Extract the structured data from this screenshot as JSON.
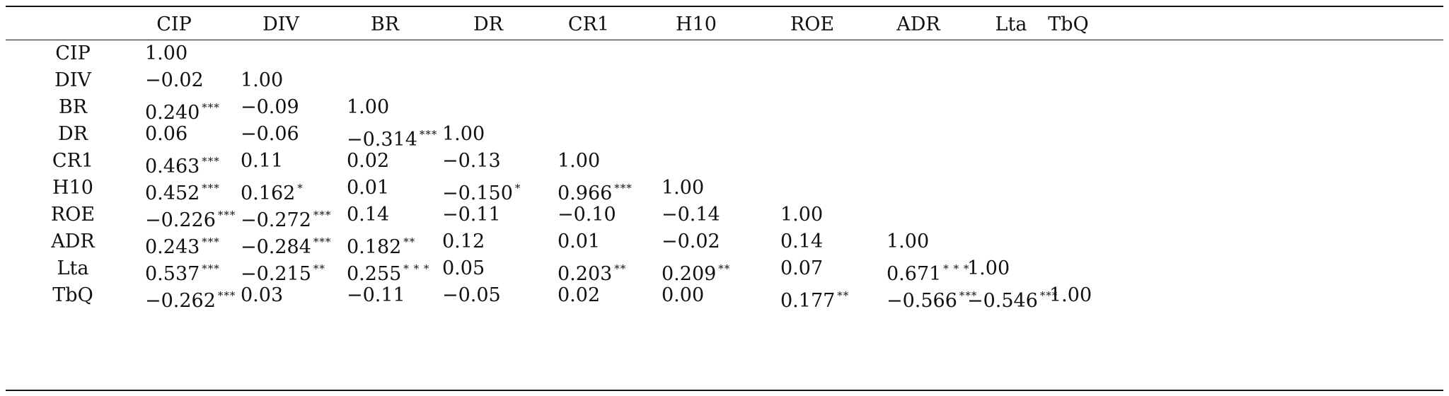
{
  "table": {
    "columns": [
      "CIP",
      "DIV",
      "BR",
      "DR",
      "CR1",
      "H10",
      "ROE",
      "ADR",
      "Lta",
      "TbQ"
    ],
    "rows": [
      {
        "label": "CIP",
        "cells": [
          {
            "value": "1.00",
            "stars": ""
          }
        ]
      },
      {
        "label": "DIV",
        "cells": [
          {
            "value": "−0.02",
            "stars": ""
          },
          {
            "value": "1.00",
            "stars": ""
          }
        ]
      },
      {
        "label": "BR",
        "cells": [
          {
            "value": "0.240",
            "stars": "***"
          },
          {
            "value": "−0.09",
            "stars": ""
          },
          {
            "value": "1.00",
            "stars": ""
          }
        ]
      },
      {
        "label": "DR",
        "cells": [
          {
            "value": "0.06",
            "stars": ""
          },
          {
            "value": "−0.06",
            "stars": ""
          },
          {
            "value": "−0.314",
            "stars": "***"
          },
          {
            "value": "1.00",
            "stars": ""
          }
        ]
      },
      {
        "label": "CR1",
        "cells": [
          {
            "value": "0.463",
            "stars": "***"
          },
          {
            "value": "0.11",
            "stars": ""
          },
          {
            "value": "0.02",
            "stars": ""
          },
          {
            "value": "−0.13",
            "stars": ""
          },
          {
            "value": "1.00",
            "stars": ""
          }
        ]
      },
      {
        "label": "H10",
        "cells": [
          {
            "value": "0.452",
            "stars": "***"
          },
          {
            "value": "0.162",
            "stars": "*"
          },
          {
            "value": "0.01",
            "stars": ""
          },
          {
            "value": "−0.150",
            "stars": "*"
          },
          {
            "value": "0.966",
            "stars": "***"
          },
          {
            "value": "1.00",
            "stars": ""
          }
        ]
      },
      {
        "label": "ROE",
        "cells": [
          {
            "value": "−0.226",
            "stars": "***"
          },
          {
            "value": "−0.272",
            "stars": "***"
          },
          {
            "value": "0.14",
            "stars": ""
          },
          {
            "value": "−0.11",
            "stars": ""
          },
          {
            "value": "−0.10",
            "stars": ""
          },
          {
            "value": "−0.14",
            "stars": ""
          },
          {
            "value": "1.00",
            "stars": ""
          }
        ]
      },
      {
        "label": "ADR",
        "cells": [
          {
            "value": "0.243",
            "stars": "***"
          },
          {
            "value": "−0.284",
            "stars": "***"
          },
          {
            "value": "0.182",
            "stars": "**"
          },
          {
            "value": "0.12",
            "stars": ""
          },
          {
            "value": "0.01",
            "stars": ""
          },
          {
            "value": "−0.02",
            "stars": ""
          },
          {
            "value": "0.14",
            "stars": ""
          },
          {
            "value": "1.00",
            "stars": ""
          }
        ]
      },
      {
        "label": "Lta",
        "cells": [
          {
            "value": "0.537",
            "stars": "***"
          },
          {
            "value": "−0.215",
            "stars": "**"
          },
          {
            "value": "0.255",
            "stars": "* * *"
          },
          {
            "value": "0.05",
            "stars": ""
          },
          {
            "value": "0.203",
            "stars": "**"
          },
          {
            "value": "0.209",
            "stars": "**"
          },
          {
            "value": "0.07",
            "stars": ""
          },
          {
            "value": "0.671",
            "stars": "* * *"
          },
          {
            "value": "1.00",
            "stars": ""
          }
        ]
      },
      {
        "label": "TbQ",
        "cells": [
          {
            "value": "−0.262",
            "stars": "***"
          },
          {
            "value": "0.03",
            "stars": ""
          },
          {
            "value": "−0.11",
            "stars": ""
          },
          {
            "value": "−0.05",
            "stars": ""
          },
          {
            "value": "0.02",
            "stars": ""
          },
          {
            "value": "0.00",
            "stars": ""
          },
          {
            "value": "0.177",
            "stars": "**"
          },
          {
            "value": "−0.566",
            "stars": "***"
          },
          {
            "value": "−0.546",
            "stars": "***"
          },
          {
            "value": "1.00",
            "stars": ""
          }
        ]
      }
    ]
  }
}
